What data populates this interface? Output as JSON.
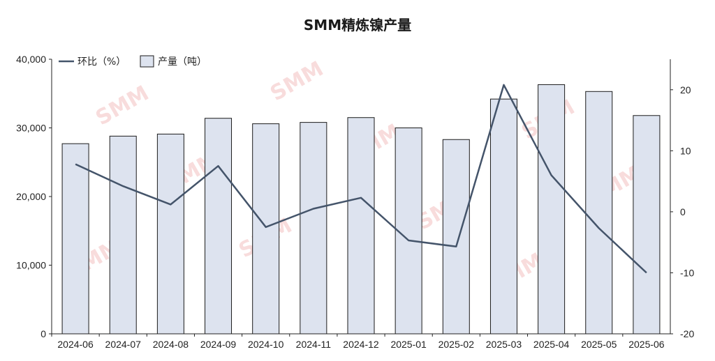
{
  "chart_data": {
    "type": "bar+line",
    "title": "SMM精炼镍产量",
    "categories": [
      "2024-06",
      "2024-07",
      "2024-08",
      "2024-09",
      "2024-10",
      "2024-11",
      "2024-12",
      "2025-01",
      "2025-02",
      "2025-03",
      "2025-04",
      "2025-05",
      "2025-06"
    ],
    "series": [
      {
        "name": "产量（吨）",
        "type": "bar",
        "axis": "left",
        "values": [
          27700,
          28800,
          29100,
          31400,
          30600,
          30800,
          31500,
          30000,
          28300,
          34200,
          36300,
          35300,
          31800
        ]
      },
      {
        "name": "环比（%）",
        "type": "line",
        "axis": "right",
        "values": [
          7.8,
          4.2,
          1.2,
          7.5,
          -2.5,
          0.5,
          2.3,
          -4.7,
          -5.7,
          20.8,
          6.0,
          -2.7,
          -10.0
        ]
      }
    ],
    "y_left": {
      "min": 0,
      "max": 40000,
      "ticks": [
        "0",
        "10,000",
        "20,000",
        "30,000",
        "40,000"
      ]
    },
    "y_right": {
      "min": -20,
      "max": 25,
      "ticks": [
        "-20",
        "-10",
        "0",
        "10",
        "20"
      ]
    },
    "legend": {
      "placement": "top-left",
      "entries": [
        "环比（%）",
        "产量（吨）"
      ]
    },
    "grid": false,
    "colors": {
      "bar_fill": "#dde3ef",
      "bar_stroke": "#1a1a1a",
      "line": "#44546a"
    },
    "watermark": "SMM"
  }
}
